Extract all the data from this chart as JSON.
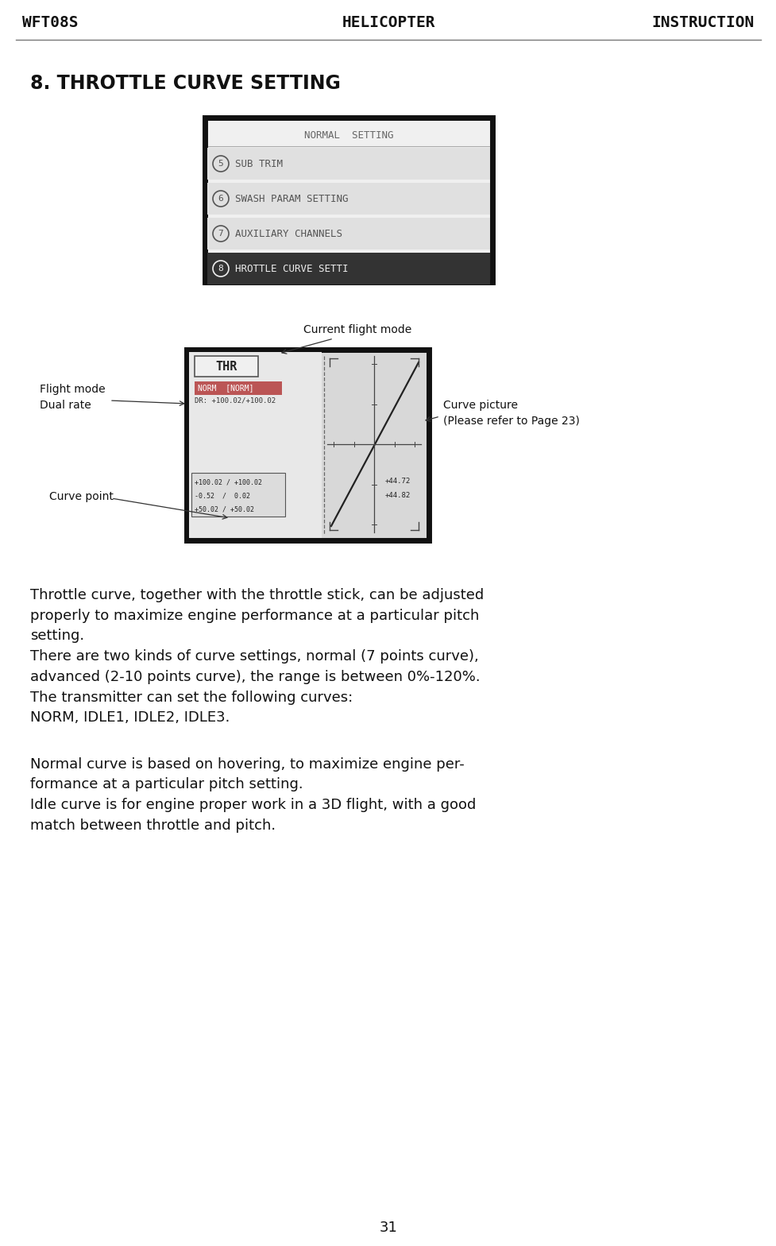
{
  "bg_color": "#ffffff",
  "header_left": "WFT08S",
  "header_center": "HELICOPTER",
  "header_right": "INSTRUCTION",
  "section_title": "8. THROTTLE CURVE SETTING",
  "footer_text": "31",
  "screen1_title": "NORMAL  SETTING",
  "screen1_items": [
    {
      "num": "5",
      "text": "SUB TRIM"
    },
    {
      "num": "6",
      "text": "SWASH PARAM SETTING"
    },
    {
      "num": "7",
      "text": "AUXILIARY CHANNELS"
    },
    {
      "num": "8",
      "text": "HROTTLE CURVE SETTI",
      "highlighted": true
    }
  ],
  "screen2_label_top": "Current flight mode",
  "screen2_thr": "THR",
  "screen2_mode_label": "NORM  [NORM]",
  "screen2_dr_label": "DR: +100.02/+100.02",
  "screen2_curve_points_line1": "+100.02 / +100.02",
  "screen2_curve_points_line2": "-0.52  /  0.02",
  "screen2_curve_points_line3": "+50.02 / +50.02",
  "screen2_curve_right1": "+44.72",
  "screen2_curve_right2": "+44.82",
  "body_paragraphs": [
    "Throttle curve, together with the throttle stick, can be adjusted\nproperly to maximize engine performance at a particular pitch\nsetting.\nThere are two kinds of curve settings, normal (7 points curve),\nadvanced (2-10 points curve), the range is between 0%-120%.\nThe transmitter can set the following curves:\nNORM, IDLE1, IDLE2, IDLE3.",
    "Normal curve is based on hovering, to maximize engine per-\nformance at a particular pitch setting.\nIdle curve is for engine proper work in a 3D flight, with a good\nmatch between throttle and pitch."
  ],
  "header_font_size": 14,
  "title_font_size": 17,
  "body_font_size": 13,
  "annotation_font_size": 10
}
